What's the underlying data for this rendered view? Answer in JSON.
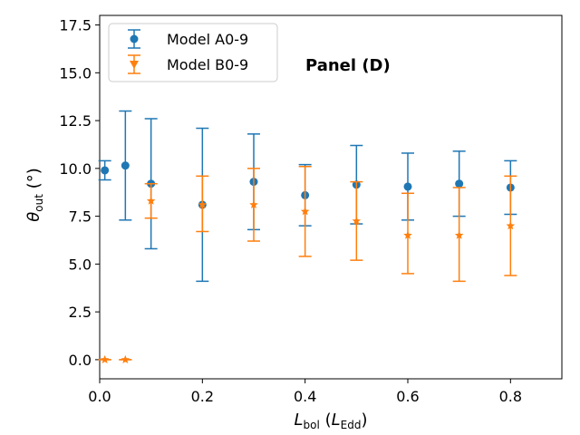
{
  "chart_data": {
    "type": "scatter",
    "title": "",
    "annotation": "Panel (D)",
    "xlabel": {
      "main": "L",
      "sub": "bol",
      "paren_main": "L",
      "paren_sub": "Edd"
    },
    "ylabel": {
      "main": "θ",
      "sub": "out",
      "unit": "(°)"
    },
    "xlim": [
      0.0,
      0.9
    ],
    "ylim": [
      -1.0,
      18.0
    ],
    "xticks": [
      0.0,
      0.2,
      0.4,
      0.6,
      0.8
    ],
    "xtick_labels": [
      "0.0",
      "0.2",
      "0.4",
      "0.6",
      "0.8"
    ],
    "yticks": [
      0.0,
      2.5,
      5.0,
      7.5,
      10.0,
      12.5,
      15.0,
      17.5
    ],
    "ytick_labels": [
      "0.0",
      "2.5",
      "5.0",
      "7.5",
      "10.0",
      "12.5",
      "15.0",
      "17.5"
    ],
    "grid": false,
    "legend_position": "top-left",
    "series": [
      {
        "name": "Model A0-9",
        "marker": "circle",
        "color": "#1f77b4",
        "x": [
          0.01,
          0.05,
          0.1,
          0.2,
          0.3,
          0.4,
          0.5,
          0.6,
          0.7,
          0.8
        ],
        "y": [
          9.9,
          10.15,
          9.2,
          8.1,
          9.3,
          8.6,
          9.15,
          9.05,
          9.2,
          9.0
        ],
        "yerr_low": [
          9.4,
          7.3,
          5.8,
          4.1,
          6.8,
          7.0,
          7.1,
          7.3,
          7.5,
          7.6
        ],
        "yerr_high": [
          10.4,
          13.0,
          12.6,
          12.1,
          11.8,
          10.2,
          11.2,
          10.8,
          10.9,
          10.4
        ]
      },
      {
        "name": "Model B0-9",
        "marker": "star",
        "color": "#ff7f0e",
        "x": [
          0.01,
          0.05,
          0.1,
          0.2,
          0.3,
          0.4,
          0.5,
          0.6,
          0.7,
          0.8
        ],
        "y": [
          0.0,
          0.0,
          8.3,
          8.1,
          8.1,
          7.75,
          7.25,
          6.5,
          6.5,
          7.0
        ],
        "yerr_low": [
          0.0,
          0.0,
          7.4,
          6.7,
          6.2,
          5.4,
          5.2,
          4.5,
          4.1,
          4.4
        ],
        "yerr_high": [
          0.0,
          0.0,
          9.2,
          9.6,
          10.0,
          10.1,
          9.3,
          8.7,
          9.0,
          9.6
        ]
      }
    ]
  }
}
